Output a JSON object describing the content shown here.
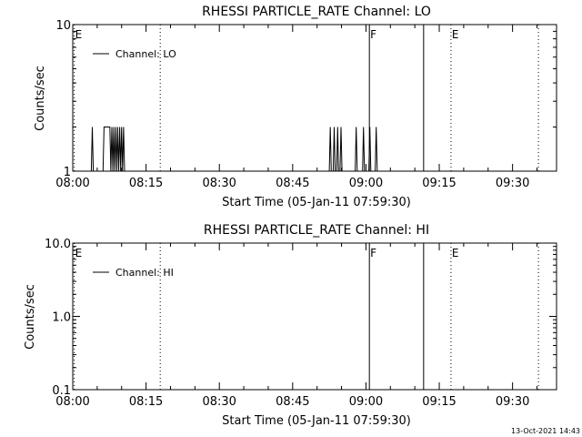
{
  "chart_data": [
    {
      "type": "line",
      "title": "RHESSI PARTICLE_RATE Channel: LO",
      "xlabel": "Start Time (05-Jan-11 07:59:30)",
      "ylabel": "Counts/sec",
      "x_unit": "minutes after 08:00 UT",
      "xlim": [
        0,
        99
      ],
      "ylim": [
        1,
        10
      ],
      "yscale": "log",
      "grid": false,
      "legend_position": "top-left",
      "x_ticks": [
        0,
        15,
        30,
        45,
        60,
        75,
        90
      ],
      "x_tick_labels": [
        "08:00",
        "08:15",
        "08:30",
        "08:45",
        "09:00",
        "09:15",
        "09:30"
      ],
      "y_ticks": [
        1,
        10
      ],
      "y_tick_labels": [
        "1",
        "10"
      ],
      "series": [
        {
          "name": "Channel: LO",
          "color": "#000000",
          "x": [
            0,
            3.8,
            4.0,
            4.2,
            6.2,
            6.4,
            7.6,
            7.8,
            8.0,
            8.2,
            8.4,
            8.6,
            8.8,
            9.0,
            9.2,
            9.4,
            9.6,
            9.8,
            10.0,
            10.2,
            10.4,
            10.6,
            52.5,
            52.7,
            52.9,
            53.3,
            53.5,
            53.7,
            54.0,
            54.2,
            54.4,
            54.7,
            54.9,
            55.1,
            57.8,
            58.0,
            58.2,
            59.3,
            59.5,
            59.7,
            60.6,
            60.8,
            61.0,
            61.9,
            62.1,
            62.3,
            99
          ],
          "values": [
            1,
            1,
            2,
            1,
            1,
            2,
            2,
            1,
            2,
            1,
            2,
            1,
            2,
            1,
            2,
            1,
            2,
            1,
            2,
            1,
            2,
            1,
            1,
            2,
            1,
            1,
            2,
            1,
            1,
            2,
            1,
            1,
            2,
            1,
            1,
            2,
            1,
            1,
            2,
            1,
            1,
            2,
            1,
            1,
            2,
            1,
            1
          ]
        }
      ],
      "markers": [
        {
          "x": 0.3,
          "label": "E",
          "style": "dotted"
        },
        {
          "x": 17.9,
          "label": "",
          "style": "dotted"
        },
        {
          "x": 60.7,
          "label": "F",
          "style": "solid"
        },
        {
          "x": 71.8,
          "label": "",
          "style": "solid"
        },
        {
          "x": 77.4,
          "label": "E",
          "style": "dotted"
        },
        {
          "x": 95.3,
          "label": "",
          "style": "dotted"
        }
      ]
    },
    {
      "type": "line",
      "title": "RHESSI PARTICLE_RATE Channel: HI",
      "xlabel": "Start Time (05-Jan-11 07:59:30)",
      "ylabel": "Counts/sec",
      "x_unit": "minutes after 08:00 UT",
      "xlim": [
        0,
        99
      ],
      "ylim": [
        0.1,
        10
      ],
      "yscale": "log",
      "grid": false,
      "legend_position": "top-left",
      "x_ticks": [
        0,
        15,
        30,
        45,
        60,
        75,
        90
      ],
      "x_tick_labels": [
        "08:00",
        "08:15",
        "08:30",
        "08:45",
        "09:00",
        "09:15",
        "09:30"
      ],
      "y_ticks": [
        0.1,
        1,
        10
      ],
      "y_tick_labels": [
        "0.1",
        "1.0",
        "10.0"
      ],
      "series": [
        {
          "name": "Channel: HI",
          "color": "#000000",
          "x": [],
          "values": []
        }
      ],
      "markers": [
        {
          "x": 0.3,
          "label": "E",
          "style": "dotted"
        },
        {
          "x": 17.9,
          "label": "",
          "style": "dotted"
        },
        {
          "x": 60.7,
          "label": "F",
          "style": "solid"
        },
        {
          "x": 71.8,
          "label": "",
          "style": "solid"
        },
        {
          "x": 77.4,
          "label": "E",
          "style": "dotted"
        },
        {
          "x": 95.3,
          "label": "",
          "style": "dotted"
        }
      ]
    }
  ],
  "footer": {
    "timestamp": "13-Oct-2021 14:43"
  }
}
